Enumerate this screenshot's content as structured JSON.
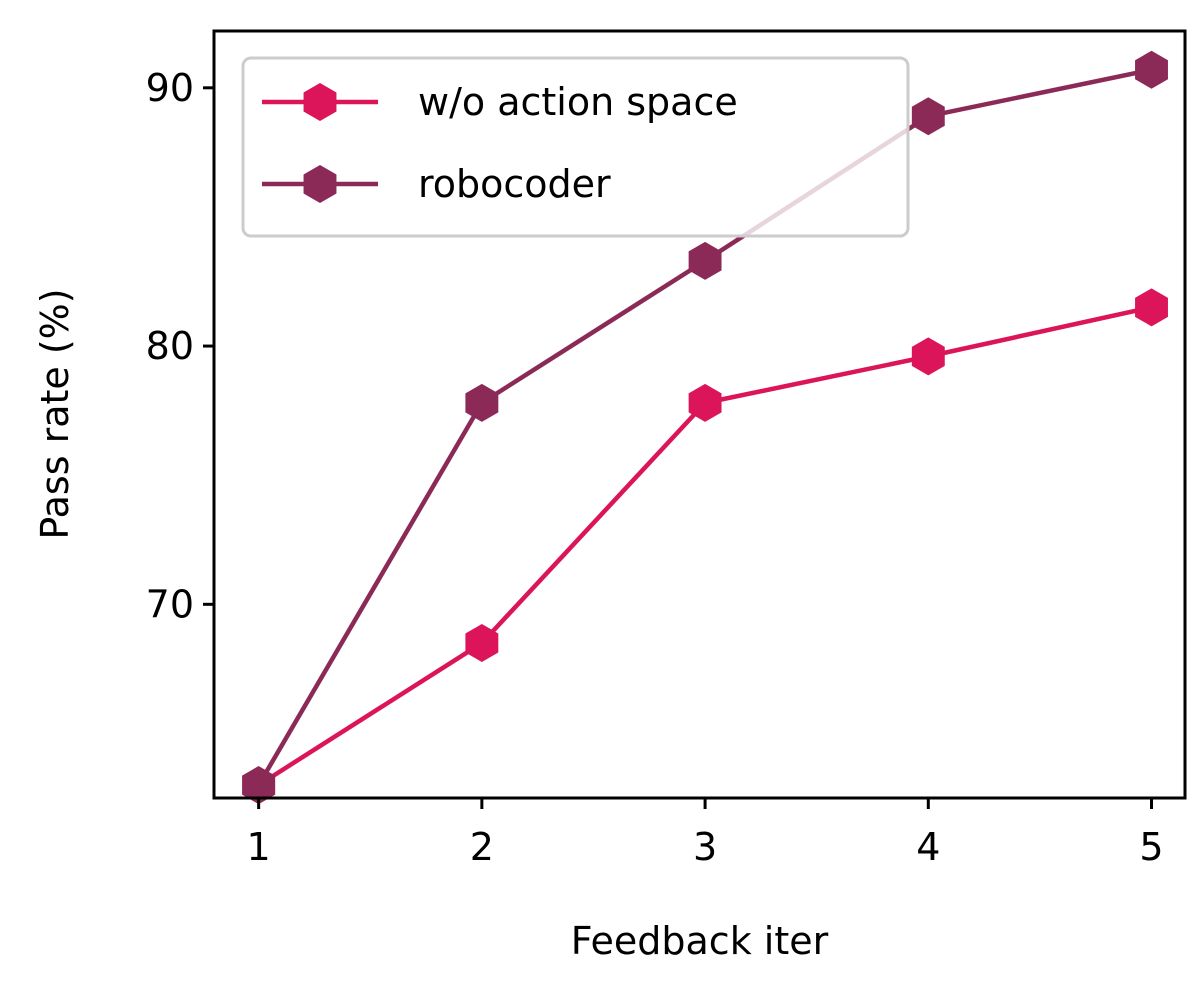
{
  "chart_data": {
    "type": "line",
    "title": "",
    "xlabel": "Feedback iter",
    "ylabel": "Pass rate (%)",
    "x": [
      1,
      2,
      3,
      4,
      5
    ],
    "xlim": [
      0.8,
      5.15
    ],
    "ylim": [
      62.5,
      92.2
    ],
    "xticks": [
      "1",
      "2",
      "3",
      "4",
      "5"
    ],
    "yticks": [
      70,
      80,
      90
    ],
    "grid": false,
    "legend_position": "upper-left",
    "marker": "hexagon",
    "series": [
      {
        "name": "w/o action space",
        "color": "#DC1459",
        "values": [
          63.0,
          68.5,
          77.8,
          79.6,
          81.5
        ]
      },
      {
        "name": "robocoder",
        "color": "#8C2A57",
        "values": [
          63.0,
          77.8,
          83.3,
          88.9,
          90.7
        ]
      }
    ]
  }
}
